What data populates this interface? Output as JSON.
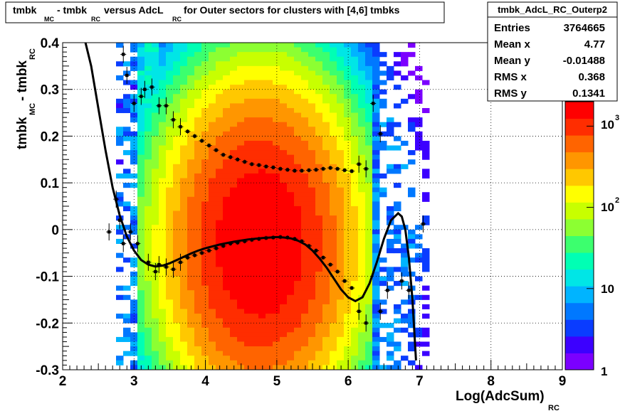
{
  "chart_data": {
    "type": "heatmap",
    "title_parts": [
      "tmbk",
      "MC",
      " - tmbk",
      "RC",
      " versus AdcL",
      "RC",
      " for Outer sectors for clusters with [4,6] tmbks"
    ],
    "xlabel": "Log(AdcSum)",
    "xlabel_sub": "RC",
    "ylabel": "tmbk",
    "ylabel_sub1": "MC",
    "ylabel_mid": " - tmbk",
    "ylabel_sub2": "RC",
    "xlim": [
      2,
      9
    ],
    "ylim": [
      -0.3,
      0.4
    ],
    "x_ticks": [
      "2",
      "3",
      "4",
      "5",
      "6",
      "7",
      "8",
      "9"
    ],
    "y_ticks": [
      "-0.3",
      "-0.2",
      "-0.1",
      "0",
      "0.1",
      "0.2",
      "0.3",
      "0.4"
    ],
    "grid": true,
    "color_scale": {
      "log": true,
      "range": [
        1,
        2000
      ],
      "labels": [
        "1",
        "10",
        "10",
        "10"
      ],
      "label_exponents": [
        "",
        "",
        "2",
        "3"
      ],
      "palette": [
        "#7b00ff",
        "#3c00ff",
        "#0a3cff",
        "#0078ff",
        "#00b4ff",
        "#00e6e6",
        "#00ffb4",
        "#3cff6e",
        "#8cff32",
        "#c8ff00",
        "#ffff00",
        "#ffc800",
        "#ff9600",
        "#ff6400",
        "#ff2d00",
        "#ff0000"
      ]
    },
    "stats_box": {
      "name": "tmbk_AdcL_RC_Outerp2",
      "rows": [
        {
          "label": "Entries",
          "value": "3764665"
        },
        {
          "label": "Mean x",
          "value": "4.77"
        },
        {
          "label": "Mean y",
          "value": "-0.01488"
        },
        {
          "label": "RMS x",
          "value": "0.368"
        },
        {
          "label": "RMS y",
          "value": "0.1341"
        }
      ]
    },
    "series": [
      {
        "kind": "profile-upper",
        "x": [
          2.85,
          2.9,
          3.0,
          3.1,
          3.15,
          3.25,
          3.35,
          3.45,
          3.55,
          3.65,
          3.75,
          3.85,
          3.95,
          4.05,
          4.15,
          4.25,
          4.35,
          4.45,
          4.55,
          4.65,
          4.75,
          4.85,
          4.95,
          5.05,
          5.15,
          5.25,
          5.35,
          5.45,
          5.55,
          5.65,
          5.75,
          5.85,
          5.95,
          6.05,
          6.15,
          6.25,
          6.35,
          6.45
        ],
        "y": [
          0.375,
          0.33,
          0.27,
          0.285,
          0.3,
          0.305,
          0.265,
          0.265,
          0.235,
          0.22,
          0.21,
          0.2,
          0.19,
          0.18,
          0.17,
          0.16,
          0.155,
          0.15,
          0.145,
          0.14,
          0.138,
          0.135,
          0.133,
          0.13,
          0.128,
          0.126,
          0.126,
          0.127,
          0.128,
          0.13,
          0.132,
          0.13,
          0.127,
          0.125,
          0.14,
          0.13,
          0.27,
          0.205
        ]
      },
      {
        "kind": "profile-lower",
        "x": [
          2.65,
          2.75,
          2.8,
          2.85,
          2.95,
          3.05,
          3.2,
          3.3,
          3.35,
          3.45,
          3.55,
          3.65,
          3.75,
          3.85,
          3.95,
          4.05,
          4.15,
          4.25,
          4.35,
          4.45,
          4.55,
          4.65,
          4.75,
          4.85,
          4.95,
          5.05,
          5.15,
          5.25,
          5.35,
          5.45,
          5.55,
          5.65,
          5.75,
          5.85,
          5.95,
          6.05,
          6.15,
          6.25,
          6.45,
          6.55,
          6.75,
          6.85,
          7.05
        ],
        "y": [
          -0.005,
          0.065,
          0.02,
          -0.03,
          -0.005,
          -0.03,
          -0.07,
          -0.09,
          -0.075,
          -0.08,
          -0.085,
          -0.07,
          -0.06,
          -0.055,
          -0.05,
          -0.045,
          -0.04,
          -0.035,
          -0.03,
          -0.028,
          -0.025,
          -0.022,
          -0.02,
          -0.018,
          -0.017,
          -0.016,
          -0.017,
          -0.02,
          -0.025,
          -0.035,
          -0.045,
          -0.06,
          -0.075,
          -0.09,
          -0.11,
          -0.125,
          -0.175,
          -0.2,
          -0.175,
          -0.13,
          -0.11,
          -0.13,
          0.012
        ]
      },
      {
        "kind": "fit-curve",
        "x": [
          2.32,
          2.4,
          2.5,
          2.6,
          2.7,
          2.8,
          2.9,
          3.0,
          3.1,
          3.2,
          3.3,
          3.4,
          3.5,
          3.6,
          3.7,
          3.8,
          3.9,
          4.0,
          4.2,
          4.4,
          4.6,
          4.8,
          5.0,
          5.1,
          5.2,
          5.3,
          5.4,
          5.5,
          5.6,
          5.7,
          5.8,
          5.9,
          6.0,
          6.1,
          6.2,
          6.3,
          6.4,
          6.5,
          6.6,
          6.7,
          6.75,
          6.8,
          6.85,
          6.9,
          6.95
        ],
        "y": [
          0.4,
          0.35,
          0.26,
          0.17,
          0.09,
          0.03,
          -0.015,
          -0.045,
          -0.065,
          -0.075,
          -0.079,
          -0.077,
          -0.072,
          -0.065,
          -0.058,
          -0.051,
          -0.045,
          -0.04,
          -0.032,
          -0.026,
          -0.021,
          -0.018,
          -0.016,
          -0.017,
          -0.019,
          -0.024,
          -0.032,
          -0.045,
          -0.062,
          -0.082,
          -0.105,
          -0.128,
          -0.145,
          -0.153,
          -0.145,
          -0.115,
          -0.07,
          -0.02,
          0.02,
          0.035,
          0.028,
          0.0,
          -0.06,
          -0.15,
          -0.28
        ]
      }
    ]
  }
}
